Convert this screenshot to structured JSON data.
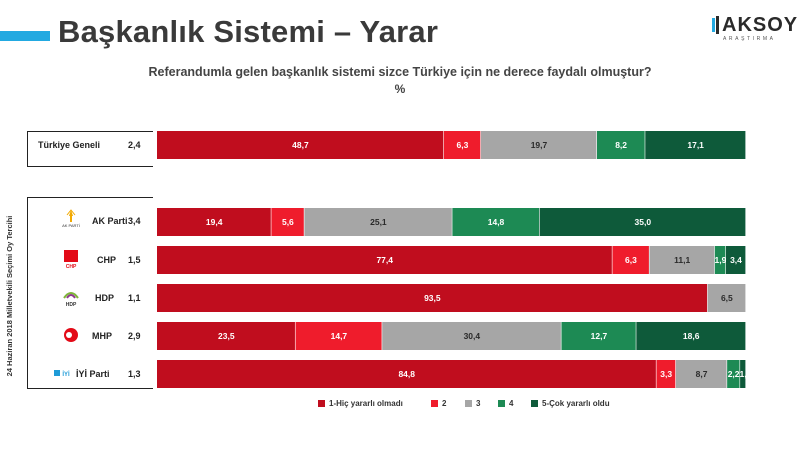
{
  "header": {
    "title": "Başkanlık Sistemi – Yarar",
    "logo_text": "AKSOY",
    "logo_sub": "ARAŞTIRMA",
    "accent_color": "#22a9e1"
  },
  "side_label": "24 Haziran 2018 Milletvekili Seçimi Oy Tercihi",
  "chart_data": {
    "type": "bar",
    "orientation": "horizontal",
    "stacked": "100%",
    "title": "Referandumla gelen başkanlık sistemi sizce Türkiye için ne derece faydalı olmuştur?",
    "unit": "%",
    "categories": [
      "Türkiye Geneli",
      "AK Parti",
      "CHP",
      "HDP",
      "MHP",
      "İYİ Parti"
    ],
    "scores": [
      "2,4",
      "3,4",
      "1,5",
      "1,1",
      "2,9",
      "1,3"
    ],
    "series": [
      {
        "name": "1-Hiç yararlı olmadı",
        "color": "#c00d1e",
        "values": [
          48.7,
          19.4,
          77.4,
          93.5,
          23.5,
          84.8
        ],
        "labels": [
          "48,7",
          "19,4",
          "77,4",
          "93,5",
          "23,5",
          "84,8"
        ]
      },
      {
        "name": "2",
        "color": "#ef1c2c",
        "values": [
          6.3,
          5.6,
          6.3,
          0,
          14.7,
          3.3
        ],
        "labels": [
          "6,3",
          "5,6",
          "6,3",
          "",
          "14,7",
          "3,3"
        ]
      },
      {
        "name": "3",
        "color": "#a6a6a6",
        "values": [
          19.7,
          25.1,
          11.1,
          6.5,
          30.4,
          8.7
        ],
        "labels": [
          "19,7",
          "25,1",
          "11,1",
          "6,5",
          "30,4",
          "8,7"
        ]
      },
      {
        "name": "4",
        "color": "#1d8a54",
        "values": [
          8.2,
          14.8,
          1.9,
          0,
          12.7,
          2.2
        ],
        "labels": [
          "8,2",
          "14,8",
          "1,9",
          "",
          "12,7",
          "2,2"
        ]
      },
      {
        "name": "5-Çok yararlı oldu",
        "color": "#0e5a3a",
        "values": [
          17.1,
          35.0,
          3.4,
          0,
          18.6,
          1.0
        ],
        "labels": [
          "17,1",
          "35,0",
          "3,4",
          "",
          "18,6",
          "1,"
        ]
      }
    ],
    "legend_position": "bottom",
    "grid": false
  }
}
